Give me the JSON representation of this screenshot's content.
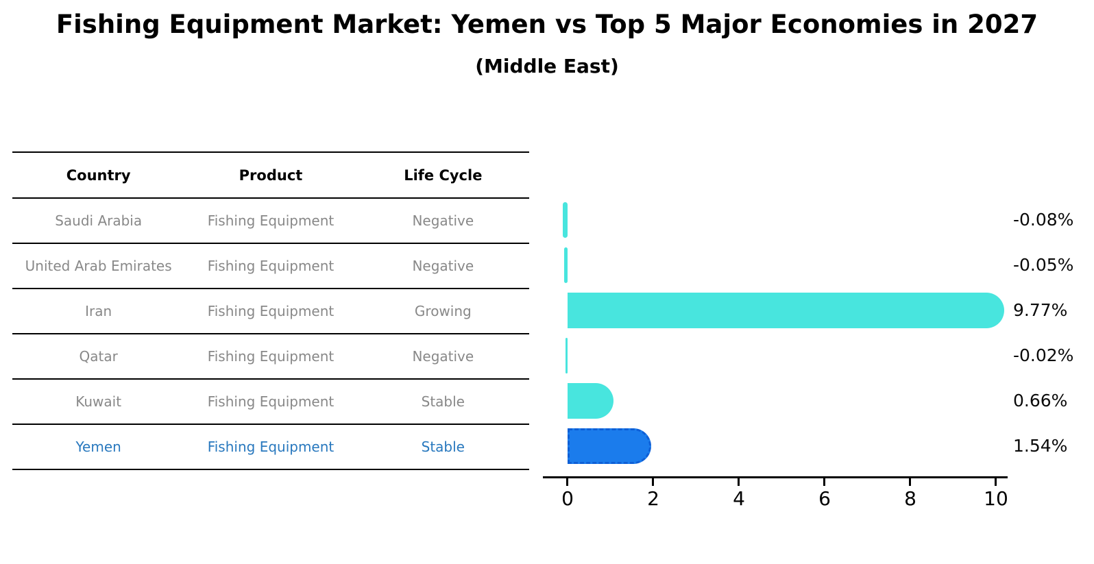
{
  "title": "Fishing Equipment Market: Yemen vs Top 5 Major Economies in 2027",
  "subtitle": "(Middle East)",
  "table": {
    "headers": {
      "country": "Country",
      "product": "Product",
      "life_cycle": "Life Cycle"
    },
    "rows": [
      {
        "country": "Saudi Arabia",
        "product": "Fishing Equipment",
        "life_cycle": "Negative"
      },
      {
        "country": "United Arab Emirates",
        "product": "Fishing Equipment",
        "life_cycle": "Negative"
      },
      {
        "country": "Iran",
        "product": "Fishing Equipment",
        "life_cycle": "Growing"
      },
      {
        "country": "Qatar",
        "product": "Fishing Equipment",
        "life_cycle": "Negative"
      },
      {
        "country": "Kuwait",
        "product": "Fishing Equipment",
        "life_cycle": "Stable"
      },
      {
        "country": "Yemen",
        "product": "Fishing Equipment",
        "life_cycle": "Stable"
      }
    ],
    "highlighted_row": "Yemen"
  },
  "chart_data": {
    "type": "bar",
    "orientation": "horizontal",
    "title": "Fishing Equipment Market: Yemen vs Top 5 Major Economies in 2027",
    "subtitle": "(Middle East)",
    "categories": [
      "Saudi Arabia",
      "United Arab Emirates",
      "Iran",
      "Qatar",
      "Kuwait",
      "Yemen"
    ],
    "values": [
      -0.08,
      -0.05,
      9.77,
      -0.02,
      0.66,
      1.54
    ],
    "value_labels": [
      "-0.08%",
      "-0.05%",
      "9.77%",
      "-0.02%",
      "0.66%",
      "1.54%"
    ],
    "unit": "%",
    "xlim": [
      0,
      10
    ],
    "xticks": [
      0,
      2,
      4,
      6,
      8,
      10
    ],
    "grid": false,
    "legend": "none",
    "bar_color": "#48E5DE",
    "highlight_index": 5,
    "highlight_bar_color": "#1B7CEC",
    "highlight_border_color": "#0E5FD6"
  },
  "colors": {
    "row_text": "#888888",
    "highlight_text": "#2878BE",
    "header_text": "#000000",
    "axis": "#000000"
  }
}
